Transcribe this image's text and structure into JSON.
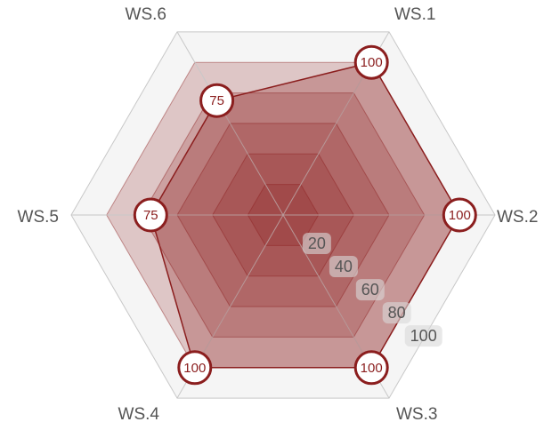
{
  "chart_data": {
    "type": "radar",
    "title": "",
    "axes": [
      "WS.1",
      "WS.2",
      "WS.3",
      "WS.4",
      "WS.5",
      "WS.6"
    ],
    "series": [
      {
        "values": [
          100,
          100,
          100,
          100,
          75,
          75
        ]
      }
    ],
    "value_labels": [
      "100",
      "100",
      "100",
      "100",
      "75",
      "75"
    ],
    "scale": {
      "min": 0,
      "max": 120,
      "ticks": [
        20,
        40,
        60,
        80,
        100
      ]
    },
    "tick_labels": [
      "20",
      "40",
      "60",
      "80",
      "100"
    ],
    "grid": true,
    "colors": {
      "series_stroke": "#8b1e1e",
      "series_fill": "#8b1e1e",
      "band_fill": "#8b1e1e",
      "marker_fill": "#ffffff",
      "outer_ring_fill": "#f5f5f5",
      "grid_line": "#c8c8c8",
      "tick_badge": "#d9d9d9"
    }
  }
}
